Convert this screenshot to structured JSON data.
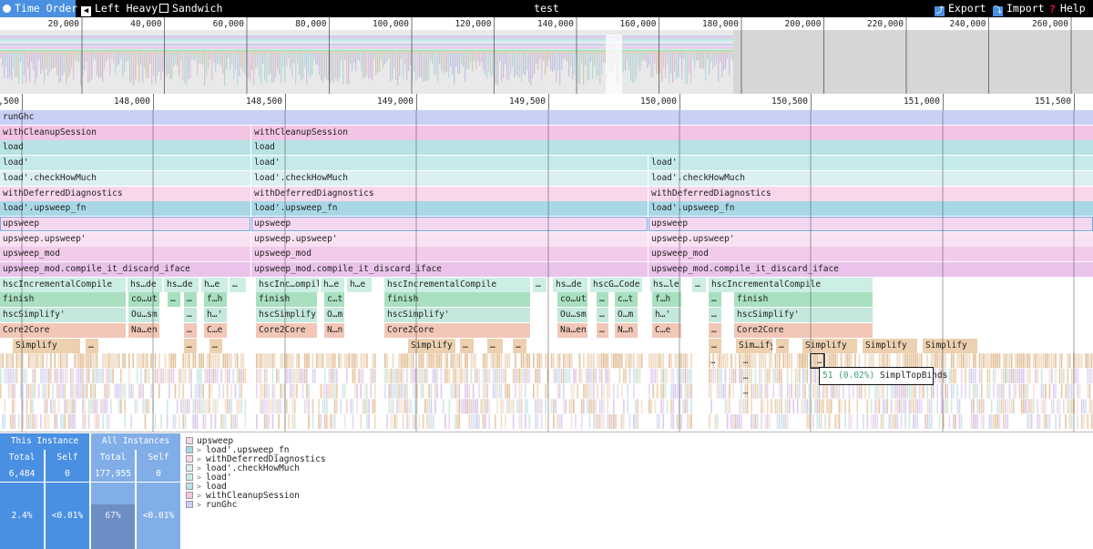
{
  "toolbar": {
    "time_order": "Time Order",
    "left_heavy": "Left Heavy",
    "sandwich": "Sandwich",
    "title": "test",
    "export": "Export",
    "import": "Import",
    "help": "Help"
  },
  "minimap": {
    "ticks": [
      "20,000",
      "40,000",
      "60,000",
      "80,000",
      "100,000",
      "120,000",
      "140,000",
      "160,000",
      "180,000",
      "200,000",
      "220,000",
      "240,000",
      "260,000"
    ]
  },
  "ruler": {
    "ticks": [
      ",500",
      "148,000",
      "148,500",
      "149,000",
      "149,500",
      "150,000",
      "150,500",
      "151,000",
      "151,500"
    ]
  },
  "colors": {
    "runGhc": "#c8d0f5",
    "withCleanupSession": "#f3c4e4",
    "load": "#b8e2e3",
    "loadPrime": "#c6eaec",
    "checkHowMuch": "#daf0f2",
    "withDeferredDiagnostics": "#f8d6ec",
    "upsweep_fn": "#a8d8e6",
    "upsweep": "#f5d7f0",
    "upsweep_upsweep": "#f8e2f3",
    "upsweep_mod": "#f2cbea",
    "compile_it": "#eac3ea",
    "hscIncremental": "#cdeee4",
    "finish": "#a8e0c0",
    "hscSimplify": "#c4e8dc",
    "core2core": "#f2c7b8",
    "simplify": "#ecd0b0",
    "accent": "#4a90e2"
  },
  "flame_rows": [
    [
      {
        "label": "runGhc",
        "start": 0,
        "end": 1200,
        "c": "runGhc"
      }
    ],
    [
      {
        "label": "withCleanupSession",
        "start": 0,
        "end": 275,
        "c": "withCleanupSession"
      },
      {
        "label": "withCleanupSession",
        "start": 276,
        "end": 1200,
        "c": "withCleanupSession"
      }
    ],
    [
      {
        "label": "load",
        "start": 0,
        "end": 275,
        "c": "load"
      },
      {
        "label": "load",
        "start": 276,
        "end": 1200,
        "c": "load"
      }
    ],
    [
      {
        "label": "load'",
        "start": 0,
        "end": 275,
        "c": "loadPrime"
      },
      {
        "label": "load'",
        "start": 276,
        "end": 711,
        "c": "loadPrime"
      },
      {
        "label": "load'",
        "start": 712,
        "end": 1200,
        "c": "loadPrime"
      }
    ],
    [
      {
        "label": "load'.checkHowMuch",
        "start": 0,
        "end": 275,
        "c": "checkHowMuch"
      },
      {
        "label": "load'.checkHowMuch",
        "start": 276,
        "end": 711,
        "c": "checkHowMuch"
      },
      {
        "label": "load'.checkHowMuch",
        "start": 712,
        "end": 1200,
        "c": "checkHowMuch"
      }
    ],
    [
      {
        "label": "withDeferredDiagnostics",
        "start": 0,
        "end": 275,
        "c": "withDeferredDiagnostics"
      },
      {
        "label": "withDeferredDiagnostics",
        "start": 276,
        "end": 711,
        "c": "withDeferredDiagnostics"
      },
      {
        "label": "withDeferredDiagnostics",
        "start": 712,
        "end": 1200,
        "c": "withDeferredDiagnostics"
      }
    ],
    [
      {
        "label": "load'.upsweep_fn",
        "start": 0,
        "end": 275,
        "c": "upsweep_fn"
      },
      {
        "label": "load'.upsweep_fn",
        "start": 276,
        "end": 711,
        "c": "upsweep_fn"
      },
      {
        "label": "load'.upsweep_fn",
        "start": 712,
        "end": 1200,
        "c": "upsweep_fn"
      }
    ],
    [
      {
        "label": "upsweep",
        "start": 0,
        "end": 275,
        "c": "upsweep",
        "sel": true
      },
      {
        "label": "upsweep",
        "start": 276,
        "end": 711,
        "c": "upsweep",
        "sel": true
      },
      {
        "label": "upsweep",
        "start": 712,
        "end": 1200,
        "c": "upsweep",
        "sel": true
      }
    ],
    [
      {
        "label": "upsweep.upsweep'",
        "start": 0,
        "end": 275,
        "c": "upsweep_upsweep"
      },
      {
        "label": "upsweep.upsweep'",
        "start": 276,
        "end": 711,
        "c": "upsweep_upsweep"
      },
      {
        "label": "upsweep.upsweep'",
        "start": 712,
        "end": 1200,
        "c": "upsweep_upsweep"
      }
    ],
    [
      {
        "label": "upsweep_mod",
        "start": 0,
        "end": 275,
        "c": "upsweep_mod"
      },
      {
        "label": "upsweep_mod",
        "start": 276,
        "end": 711,
        "c": "upsweep_mod"
      },
      {
        "label": "upsweep_mod",
        "start": 712,
        "end": 1200,
        "c": "upsweep_mod"
      }
    ],
    [
      {
        "label": "upsweep_mod.compile_it_discard_iface",
        "start": 0,
        "end": 275,
        "c": "compile_it"
      },
      {
        "label": "upsweep_mod.compile_it_discard_iface",
        "start": 276,
        "end": 711,
        "c": "compile_it"
      },
      {
        "label": "upsweep_mod.compile_it_discard_iface",
        "start": 712,
        "end": 1200,
        "c": "compile_it"
      }
    ],
    [
      {
        "label": "hscIncrementalCompile",
        "start": 0,
        "end": 138,
        "c": "hscIncremental"
      },
      {
        "label": "hs…de",
        "start": 140,
        "end": 178,
        "c": "hscIncremental"
      },
      {
        "label": "hs…de",
        "start": 180,
        "end": 218,
        "c": "hscIncremental"
      },
      {
        "label": "h…e",
        "start": 221,
        "end": 250,
        "c": "hscIncremental"
      },
      {
        "label": "…",
        "start": 252,
        "end": 270,
        "c": "hscIncremental"
      },
      {
        "label": "hscInc…ompile",
        "start": 281,
        "end": 350,
        "c": "hscIncremental"
      },
      {
        "label": "h…e",
        "start": 352,
        "end": 378,
        "c": "hscIncremental"
      },
      {
        "label": "h…e",
        "start": 381,
        "end": 408,
        "c": "hscIncremental"
      },
      {
        "label": "hscIncrementalCompile",
        "start": 422,
        "end": 582,
        "c": "hscIncremental"
      },
      {
        "label": "…",
        "start": 585,
        "end": 600,
        "c": "hscIncremental"
      },
      {
        "label": "hs…de",
        "start": 607,
        "end": 645,
        "c": "hscIncremental"
      },
      {
        "label": "hscG…Code",
        "start": 648,
        "end": 705,
        "c": "hscIncremental"
      },
      {
        "label": "hs…le",
        "start": 714,
        "end": 748,
        "c": "hscIncremental"
      },
      {
        "label": "…",
        "start": 760,
        "end": 775,
        "c": "hscIncremental"
      },
      {
        "label": "hscIncrementalCompile",
        "start": 778,
        "end": 958,
        "c": "hscIncremental"
      }
    ],
    [
      {
        "label": "finish",
        "start": 0,
        "end": 138,
        "c": "finish"
      },
      {
        "label": "co…ut",
        "start": 141,
        "end": 175,
        "c": "finish"
      },
      {
        "label": "…",
        "start": 184,
        "end": 198,
        "c": "finish"
      },
      {
        "label": "…",
        "start": 202,
        "end": 216,
        "c": "finish"
      },
      {
        "label": "f…h",
        "start": 224,
        "end": 249,
        "c": "finish"
      },
      {
        "label": "finish",
        "start": 281,
        "end": 348,
        "c": "finish"
      },
      {
        "label": "c…t",
        "start": 356,
        "end": 378,
        "c": "finish"
      },
      {
        "label": "finish",
        "start": 422,
        "end": 582,
        "c": "finish"
      },
      {
        "label": "co…ut",
        "start": 612,
        "end": 645,
        "c": "finish"
      },
      {
        "label": "…",
        "start": 655,
        "end": 668,
        "c": "finish"
      },
      {
        "label": "c…t",
        "start": 675,
        "end": 700,
        "c": "finish"
      },
      {
        "label": "f…h",
        "start": 716,
        "end": 748,
        "c": "finish"
      },
      {
        "label": "…",
        "start": 778,
        "end": 792,
        "c": "finish"
      },
      {
        "label": "finish",
        "start": 806,
        "end": 958,
        "c": "finish"
      }
    ],
    [
      {
        "label": "hscSimplify'",
        "start": 0,
        "end": 138,
        "c": "hscSimplify"
      },
      {
        "label": "Ou…sm",
        "start": 141,
        "end": 175,
        "c": "hscSimplify"
      },
      {
        "label": "…",
        "start": 202,
        "end": 216,
        "c": "hscSimplify"
      },
      {
        "label": "h…'",
        "start": 224,
        "end": 249,
        "c": "hscSimplify"
      },
      {
        "label": "hscSimplify'",
        "start": 281,
        "end": 348,
        "c": "hscSimplify"
      },
      {
        "label": "O…m",
        "start": 356,
        "end": 378,
        "c": "hscSimplify"
      },
      {
        "label": "hscSimplify'",
        "start": 422,
        "end": 582,
        "c": "hscSimplify"
      },
      {
        "label": "Ou…sm",
        "start": 612,
        "end": 645,
        "c": "hscSimplify"
      },
      {
        "label": "…",
        "start": 655,
        "end": 668,
        "c": "hscSimplify"
      },
      {
        "label": "O…m",
        "start": 675,
        "end": 700,
        "c": "hscSimplify"
      },
      {
        "label": "h…'",
        "start": 716,
        "end": 748,
        "c": "hscSimplify"
      },
      {
        "label": "…",
        "start": 778,
        "end": 792,
        "c": "hscSimplify"
      },
      {
        "label": "hscSimplify'",
        "start": 806,
        "end": 958,
        "c": "hscSimplify"
      }
    ],
    [
      {
        "label": "Core2Core",
        "start": 0,
        "end": 138,
        "c": "core2core"
      },
      {
        "label": "Na…en",
        "start": 141,
        "end": 175,
        "c": "core2core"
      },
      {
        "label": "…",
        "start": 202,
        "end": 216,
        "c": "core2core"
      },
      {
        "label": "C…e",
        "start": 224,
        "end": 249,
        "c": "core2core"
      },
      {
        "label": "Core2Core",
        "start": 281,
        "end": 348,
        "c": "core2core"
      },
      {
        "label": "N…n",
        "start": 356,
        "end": 378,
        "c": "core2core"
      },
      {
        "label": "Core2Core",
        "start": 422,
        "end": 582,
        "c": "core2core"
      },
      {
        "label": "Na…en",
        "start": 612,
        "end": 645,
        "c": "core2core"
      },
      {
        "label": "…",
        "start": 655,
        "end": 668,
        "c": "core2core"
      },
      {
        "label": "N…n",
        "start": 675,
        "end": 700,
        "c": "core2core"
      },
      {
        "label": "C…e",
        "start": 716,
        "end": 748,
        "c": "core2core"
      },
      {
        "label": "…",
        "start": 778,
        "end": 792,
        "c": "core2core"
      },
      {
        "label": "Core2Core",
        "start": 806,
        "end": 958,
        "c": "core2core"
      }
    ],
    [
      {
        "label": "Simplify",
        "start": 14,
        "end": 88,
        "c": "simplify"
      },
      {
        "label": "…",
        "start": 94,
        "end": 108,
        "c": "simplify"
      },
      {
        "label": "…",
        "start": 202,
        "end": 216,
        "c": "simplify"
      },
      {
        "label": "…",
        "start": 230,
        "end": 244,
        "c": "simplify"
      },
      {
        "label": "Simplify",
        "start": 448,
        "end": 500,
        "c": "simplify"
      },
      {
        "label": "…",
        "start": 505,
        "end": 520,
        "c": "simplify"
      },
      {
        "label": "…",
        "start": 535,
        "end": 552,
        "c": "simplify"
      },
      {
        "label": "…",
        "start": 563,
        "end": 578,
        "c": "simplify"
      },
      {
        "label": "…",
        "start": 778,
        "end": 792,
        "c": "simplify"
      },
      {
        "label": "Sim…ify",
        "start": 808,
        "end": 848,
        "c": "simplify"
      },
      {
        "label": "…",
        "start": 852,
        "end": 866,
        "c": "simplify"
      },
      {
        "label": "Simplify",
        "start": 881,
        "end": 941,
        "c": "simplify"
      },
      {
        "label": "Simplify",
        "start": 947,
        "end": 1007,
        "c": "simplify"
      },
      {
        "label": "Simplify",
        "start": 1013,
        "end": 1073,
        "c": "simplify"
      }
    ]
  ],
  "tooltip": {
    "time": "51 (0.02%)",
    "name": "SimplTopBinds"
  },
  "stats": {
    "this_instance": "This Instance",
    "all_instances": "All Instances",
    "total": "Total",
    "self": "Self",
    "this_total": "6,484",
    "this_self": "0",
    "all_total": "177,955",
    "all_self": "0",
    "this_total_pct": "2.4%",
    "this_self_pct": "<0.01%",
    "all_total_pct": "67%",
    "all_self_pct": "<0.01%",
    "this_total_fraction": 0.024,
    "all_total_fraction": 0.67
  },
  "callers": [
    {
      "label": "upsweep",
      "c": "upsweep",
      "chev": ""
    },
    {
      "label": "load'.upsweep_fn",
      "c": "upsweep_fn",
      "chev": ">"
    },
    {
      "label": "withDeferredDiagnostics",
      "c": "withDeferredDiagnostics",
      "chev": ">"
    },
    {
      "label": "load'.checkHowMuch",
      "c": "checkHowMuch",
      "chev": ">"
    },
    {
      "label": "load'",
      "c": "loadPrime",
      "chev": ">"
    },
    {
      "label": "load",
      "c": "load",
      "chev": ">"
    },
    {
      "label": "withCleanupSession",
      "c": "withCleanupSession",
      "chev": ">"
    },
    {
      "label": "runGhc",
      "c": "runGhc",
      "chev": ">"
    }
  ]
}
